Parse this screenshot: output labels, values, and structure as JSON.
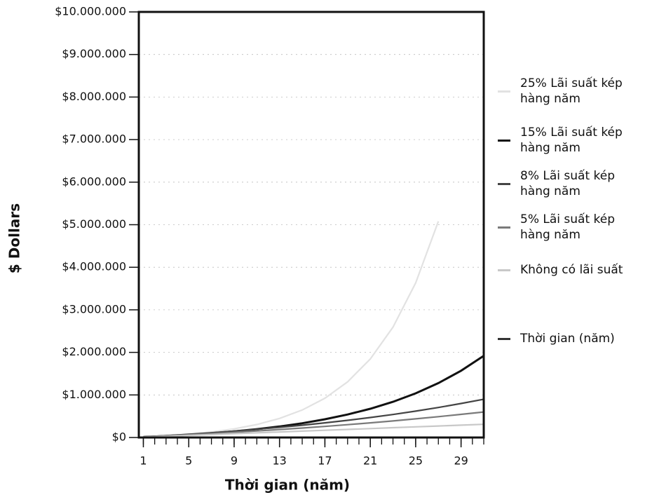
{
  "chart_data": {
    "type": "line",
    "x_label": "Thời gian (năm)",
    "y_label": "$ Dollars",
    "x": [
      1,
      3,
      5,
      7,
      9,
      11,
      13,
      15,
      17,
      19,
      21,
      23,
      25,
      27,
      29,
      31
    ],
    "series": [
      {
        "name": "25% Lãi suất kép hàng năm",
        "color": "#e2e2e2",
        "values": [
          11000,
          38000,
          76000,
          129000,
          202000,
          305000,
          448000,
          646000,
          923000,
          1308000,
          1845000,
          2592000,
          3632000,
          5081000,
          null,
          null
        ]
      },
      {
        "name": "15% Lãi suất kép hàng năm",
        "color": "#111111",
        "values": [
          11000,
          35000,
          64000,
          100000,
          143000,
          196000,
          259000,
          335000,
          428000,
          540000,
          675000,
          839000,
          1038000,
          1278000,
          1568000,
          1920000
        ]
      },
      {
        "name": "8% Lãi suất kép hàng năm",
        "color": "#444444",
        "values": [
          14000,
          44000,
          76000,
          112000,
          150000,
          193000,
          239000,
          289000,
          344000,
          404000,
          470000,
          541000,
          620000,
          705000,
          799000,
          900000
        ]
      },
      {
        "name": "5% Lãi suất kép hàng năm",
        "color": "#7a7a7a",
        "values": [
          12000,
          37000,
          64000,
          92000,
          122000,
          154000,
          187000,
          223000,
          261000,
          301000,
          344000,
          389000,
          438000,
          489000,
          543000,
          600000
        ]
      },
      {
        "name": "Không có lãi suất",
        "color": "#c8c8c8",
        "values": [
          10000,
          30000,
          50000,
          70000,
          90000,
          110000,
          130000,
          150000,
          170000,
          190000,
          210000,
          230000,
          250000,
          270000,
          290000,
          310000
        ]
      },
      {
        "name": "Thời gian (năm)",
        "color": "#333333",
        "values": [
          1,
          3,
          5,
          7,
          9,
          11,
          13,
          15,
          17,
          19,
          21,
          23,
          25,
          27,
          29,
          31
        ]
      }
    ],
    "xlim": [
      0.6,
      31
    ],
    "xticks": [
      1,
      5,
      9,
      13,
      17,
      21,
      25,
      29
    ],
    "xminorticks": [
      1,
      2,
      3,
      4,
      5,
      6,
      7,
      8,
      9,
      10,
      11,
      12,
      13,
      14,
      15,
      16,
      17,
      18,
      19,
      20,
      21,
      22,
      23,
      24,
      25,
      26,
      27,
      28,
      29,
      30,
      31
    ],
    "ylim": [
      0,
      10000000
    ],
    "yticks": [
      {
        "value": 0,
        "label": "$0"
      },
      {
        "value": 1000000,
        "label": "$1.000.000"
      },
      {
        "value": 2000000,
        "label": "$2.000.000"
      },
      {
        "value": 3000000,
        "label": "$3.000.000"
      },
      {
        "value": 4000000,
        "label": "$4.000.000"
      },
      {
        "value": 5000000,
        "label": "$5.000.000"
      },
      {
        "value": 6000000,
        "label": "$6.000.000"
      },
      {
        "value": 7000000,
        "label": "$7.000.000"
      },
      {
        "value": 8000000,
        "label": "$8.000.000"
      },
      {
        "value": 9000000,
        "label": "$9.000.000"
      },
      {
        "value": 10000000,
        "label": "$10.000.000"
      }
    ],
    "grid": true,
    "legend": "right"
  }
}
